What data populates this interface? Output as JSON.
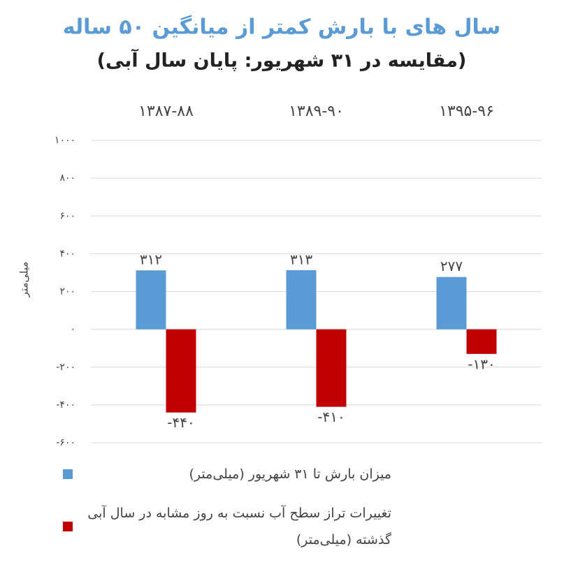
{
  "chart_data": {
    "type": "bar",
    "title": "سال های با بارش کمتر از میانگین ۵۰ ساله",
    "subtitle": "(مقایسه در ۳۱ شهریور: پایان سال آبی)",
    "y_label": "میلی‌متر",
    "categories": [
      "۱۳۸۷-۸۸",
      "۱۳۸۹-۹۰",
      "۱۳۹۵-۹۶"
    ],
    "series": [
      {
        "name": "میزان بارش تا ۳۱ شهریور (میلی‌متر)",
        "color": "#5b9bd5",
        "values": [
          312,
          313,
          277
        ],
        "value_labels": [
          "۳۱۲",
          "۳۱۳",
          "۲۷۷"
        ]
      },
      {
        "name": "تغییرات تراز سطح آب نسبت به روز مشابه در سال آبی گذشته (میلی‌متر)",
        "color": "#c00000",
        "values": [
          -440,
          -410,
          -130
        ],
        "value_labels": [
          "-۴۴۰",
          "-۴۱۰",
          "-۱۳۰"
        ]
      }
    ],
    "ylim": [
      -600,
      1000
    ],
    "yticks": [
      {
        "value": -600,
        "label": "-۶۰۰"
      },
      {
        "value": -400,
        "label": "-۴۰۰"
      },
      {
        "value": -200,
        "label": "-۲۰۰"
      },
      {
        "value": 0,
        "label": "۰"
      },
      {
        "value": 200,
        "label": "۲۰۰"
      },
      {
        "value": 400,
        "label": "۴۰۰"
      },
      {
        "value": 600,
        "label": "۶۰۰"
      },
      {
        "value": 800,
        "label": "۸۰۰"
      },
      {
        "value": 1000,
        "label": "۱۰۰۰"
      }
    ],
    "grid": true
  }
}
